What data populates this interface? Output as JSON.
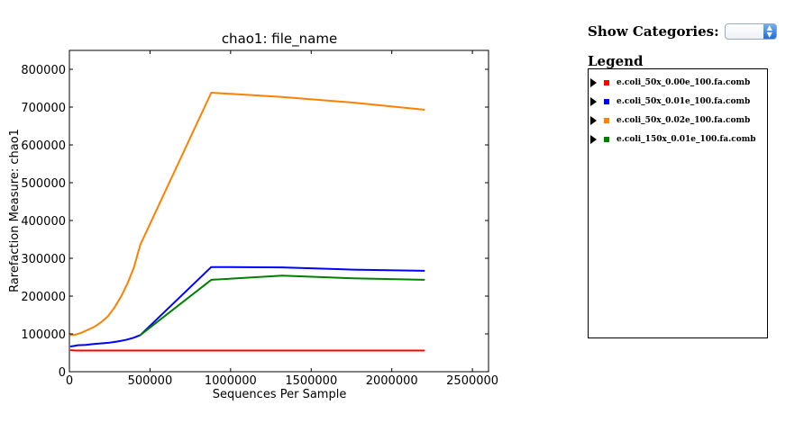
{
  "controls": {
    "show_categories_label": "Show Categories:",
    "selected_category": "",
    "legend_title": "Legend"
  },
  "legend": [
    {
      "label": "e.coli_50x_0.00e_100.fa.comb",
      "color": "#ff0000"
    },
    {
      "label": "e.coli_50x_0.01e_100.fa.comb",
      "color": "#0000ff"
    },
    {
      "label": "e.coli_50x_0.02e_100.fa.comb",
      "color": "#ff8000"
    },
    {
      "label": "e.coli_150x_0.01e_100.fa.comb",
      "color": "#008000"
    }
  ],
  "chart_data": {
    "type": "line",
    "title": "chao1: file_name",
    "xlabel": "Sequences Per Sample",
    "ylabel": "Rarefaction Measure: chao1",
    "xlim": [
      0,
      2600000
    ],
    "ylim": [
      0,
      850000
    ],
    "xticks": [
      0,
      500000,
      1000000,
      1500000,
      2000000,
      2500000
    ],
    "yticks": [
      0,
      100000,
      200000,
      300000,
      400000,
      500000,
      600000,
      700000,
      800000
    ],
    "grid": false,
    "series": [
      {
        "name": "e.coli_50x_0.00e_100.fa.comb",
        "color": "#ff0000",
        "x": [
          10000,
          40000,
          100000,
          200000,
          300000,
          440000,
          880000,
          1320000,
          1760000,
          2200000
        ],
        "y": [
          57000,
          56000,
          56000,
          56000,
          56000,
          56000,
          56000,
          56000,
          56000,
          56000
        ]
      },
      {
        "name": "e.coli_50x_0.01e_100.fa.comb",
        "color": "#0000ff",
        "x": [
          10000,
          30000,
          50000,
          100000,
          150000,
          200000,
          250000,
          300000,
          350000,
          400000,
          440000,
          880000,
          1320000,
          1760000,
          2200000
        ],
        "y": [
          67000,
          68000,
          70000,
          71000,
          73000,
          75000,
          77000,
          80000,
          84000,
          90000,
          97000,
          277000,
          276000,
          270000,
          267000
        ]
      },
      {
        "name": "e.coli_50x_0.02e_100.fa.comb",
        "color": "#ff8000",
        "x": [
          10000,
          40000,
          80000,
          120000,
          160000,
          200000,
          240000,
          280000,
          320000,
          360000,
          400000,
          440000,
          880000,
          1320000,
          1760000,
          2200000
        ],
        "y": [
          97000,
          98000,
          104000,
          112000,
          120000,
          132000,
          147000,
          170000,
          198000,
          233000,
          275000,
          336000,
          738000,
          727000,
          712000,
          693000
        ]
      },
      {
        "name": "e.coli_150x_0.01e_100.fa.comb",
        "color": "#008000",
        "x": [
          440000,
          880000,
          1320000,
          1760000,
          2200000
        ],
        "y": [
          97000,
          243000,
          254000,
          247000,
          243000
        ]
      }
    ]
  }
}
